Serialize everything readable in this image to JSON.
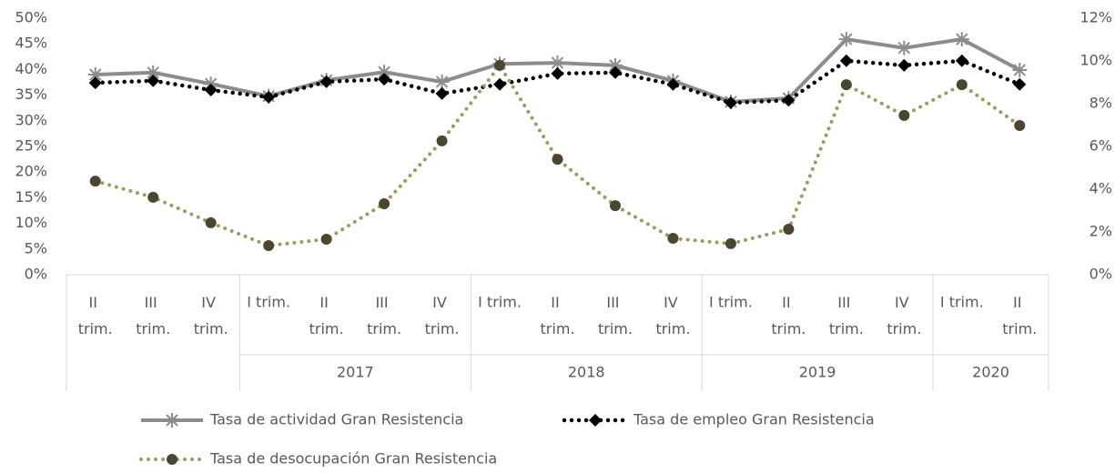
{
  "chart_data": {
    "type": "line",
    "categories": [
      "II trim.",
      "III trim.",
      "IV trim.",
      "I trim.",
      "II trim.",
      "III trim.",
      "IV trim.",
      "I trim.",
      "II trim.",
      "III trim.",
      "IV trim.",
      "I trim.",
      "II trim.",
      "III trim.",
      "IV trim.",
      "I trim.",
      "II trim."
    ],
    "category_years": [
      null,
      null,
      null,
      "2017",
      "2017",
      "2017",
      "2017",
      "2018",
      "2018",
      "2018",
      "2018",
      "2019",
      "2019",
      "2019",
      "2019",
      "2020",
      "2020"
    ],
    "series": [
      {
        "name": "Tasa de actividad Gran Resistencia",
        "color": "#8c8c8c",
        "marker": "star",
        "dash": "solid",
        "values": [
          39.0,
          39.4,
          37.2,
          34.8,
          37.9,
          39.5,
          37.6,
          41.1,
          41.3,
          40.8,
          37.8,
          33.7,
          34.4,
          45.9,
          44.2,
          45.9,
          39.9
        ]
      },
      {
        "name": "Tasa de empleo Gran Resistencia",
        "color": "#000000",
        "marker": "diamond",
        "dash": "dotted",
        "values": [
          37.4,
          37.8,
          36.0,
          34.6,
          37.6,
          38.1,
          35.3,
          37.1,
          39.2,
          39.4,
          37.1,
          33.5,
          34.0,
          41.7,
          40.8,
          41.7,
          37.1
        ]
      },
      {
        "name": "Tasa de desocupación Gran Resistencia",
        "color": "#9e9a62",
        "marker": "circle",
        "dash": "dotted",
        "axis": "y2",
        "values": [
          4.38,
          3.62,
          2.43,
          1.36,
          1.66,
          3.32,
          6.26,
          9.79,
          5.4,
          3.23,
          1.7,
          1.45,
          2.13,
          8.89,
          7.45,
          8.89,
          6.98
        ]
      }
    ],
    "ylim": [
      0,
      50
    ],
    "yticks": [
      {
        "value": 0,
        "label": "0%"
      },
      {
        "value": 5,
        "label": "5%"
      },
      {
        "value": 10,
        "label": "10%"
      },
      {
        "value": 15,
        "label": "15%"
      },
      {
        "value": 20,
        "label": "20%"
      },
      {
        "value": 25,
        "label": "25%"
      },
      {
        "value": 30,
        "label": "30%"
      },
      {
        "value": 35,
        "label": "35%"
      },
      {
        "value": 40,
        "label": "40%"
      },
      {
        "value": 45,
        "label": "45%"
      },
      {
        "value": 50,
        "label": "50%"
      }
    ],
    "y2lim": [
      0,
      12
    ],
    "y2ticks": [
      {
        "value": 0,
        "label": "0%"
      },
      {
        "value": 2,
        "label": "2%"
      },
      {
        "value": 4,
        "label": "4%"
      },
      {
        "value": 6,
        "label": "6%"
      },
      {
        "value": 8,
        "label": "8%"
      },
      {
        "value": 10,
        "label": "10%"
      },
      {
        "value": 12,
        "label": "12%"
      }
    ],
    "grid": false,
    "legend": "bottom"
  }
}
